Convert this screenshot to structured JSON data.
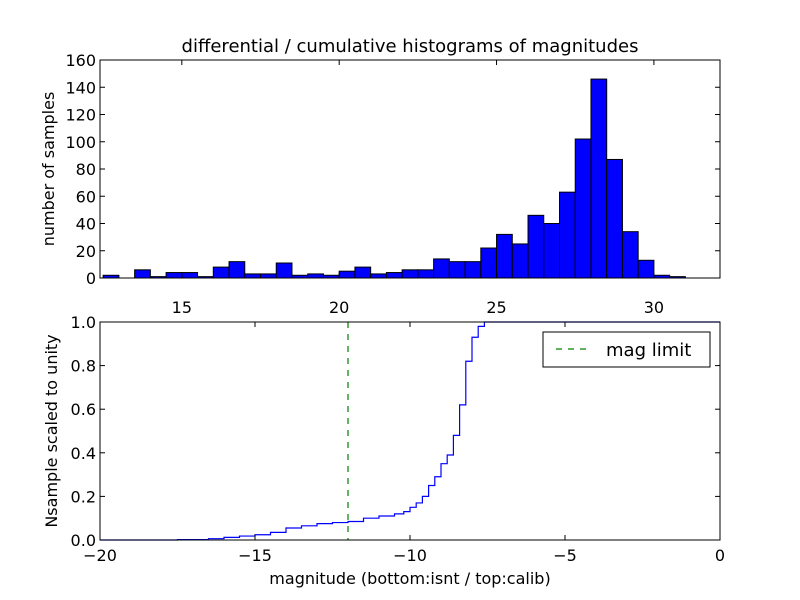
{
  "chart_data": [
    {
      "type": "bar",
      "title": "differential / cumulative histograms of magnitudes",
      "xlabel": "",
      "ylabel": "number of samples",
      "xlim": [
        12.4,
        32.1
      ],
      "ylim": [
        0,
        160
      ],
      "xticks": [
        15,
        20,
        25,
        30
      ],
      "yticks": [
        0,
        20,
        40,
        60,
        80,
        100,
        120,
        140,
        160
      ],
      "bar_color": "#0000ff",
      "bin_width": 0.5,
      "bin_starts": [
        12.5,
        13.0,
        13.5,
        14.0,
        14.5,
        15.0,
        15.5,
        16.0,
        16.5,
        17.0,
        17.5,
        18.0,
        18.5,
        19.0,
        19.5,
        20.0,
        20.5,
        21.0,
        21.5,
        22.0,
        22.5,
        23.0,
        23.5,
        24.0,
        24.5,
        25.0,
        25.5,
        26.0,
        26.5,
        27.0,
        27.5,
        28.0,
        28.5,
        29.0,
        29.5,
        30.0,
        30.5
      ],
      "values": [
        2,
        0,
        6,
        1,
        4,
        4,
        1,
        8,
        12,
        3,
        3,
        11,
        2,
        3,
        2,
        5,
        8,
        3,
        4,
        6,
        6,
        14,
        12,
        12,
        22,
        32,
        25,
        46,
        40,
        63,
        102,
        146,
        87,
        34,
        13,
        2,
        1
      ],
      "grid": false
    },
    {
      "type": "line",
      "xlabel": "magnitude (bottom:isnt / top:calib)",
      "ylabel": "Nsample scaled to unity",
      "xlim": [
        -20,
        0
      ],
      "ylim": [
        0,
        1.0
      ],
      "xticks": [
        -20,
        -15,
        -10,
        -5,
        0
      ],
      "yticks": [
        0.0,
        0.2,
        0.4,
        0.6,
        0.8,
        1.0
      ],
      "xtick_labels": [
        "−20",
        "−15",
        "−10",
        "−5",
        "0"
      ],
      "ytick_labels": [
        "0.0",
        "0.2",
        "0.4",
        "0.6",
        "0.8",
        "1.0"
      ],
      "grid": false,
      "legend_position": "top-right",
      "series": [
        {
          "style": "step",
          "color": "#0000ff",
          "x": [
            -20.0,
            -17.5,
            -16.5,
            -16.0,
            -15.5,
            -15.0,
            -14.5,
            -14.0,
            -13.5,
            -13.0,
            -12.5,
            -12.0,
            -11.5,
            -11.0,
            -10.5,
            -10.2,
            -10.0,
            -9.8,
            -9.6,
            -9.4,
            -9.2,
            -9.0,
            -8.8,
            -8.6,
            -8.4,
            -8.2,
            -8.0,
            -7.8,
            -7.6,
            0.0
          ],
          "y": [
            0.0,
            0.002,
            0.006,
            0.012,
            0.018,
            0.024,
            0.035,
            0.055,
            0.065,
            0.075,
            0.08,
            0.085,
            0.1,
            0.11,
            0.12,
            0.13,
            0.15,
            0.17,
            0.2,
            0.25,
            0.29,
            0.35,
            0.39,
            0.48,
            0.62,
            0.82,
            0.93,
            0.98,
            1.0,
            1.0
          ]
        },
        {
          "name": "mag limit",
          "style": "dashed-vertical",
          "color": "#008000",
          "x_value": -12.0
        }
      ]
    }
  ]
}
